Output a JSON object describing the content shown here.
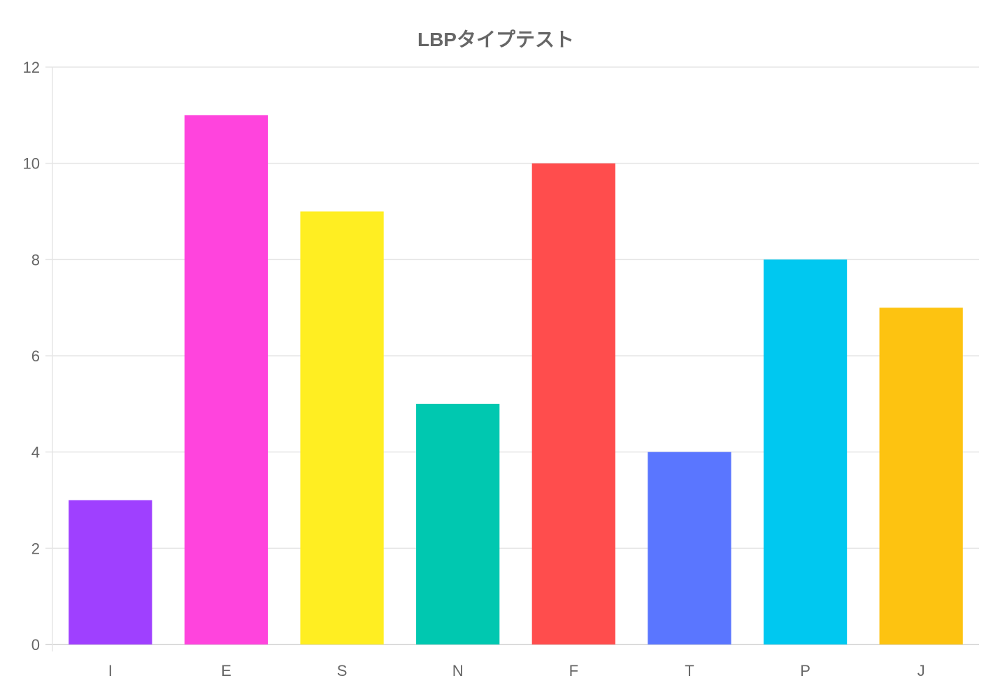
{
  "chart_data": {
    "type": "bar",
    "title": "LBPタイプテスト",
    "categories": [
      "I",
      "E",
      "S",
      "N",
      "F",
      "T",
      "P",
      "J"
    ],
    "values": [
      3,
      11,
      9,
      5,
      10,
      4,
      8,
      7
    ],
    "colors": [
      "#9f40ff",
      "#ff44dd",
      "#ffee22",
      "#00c8b0",
      "#ff4d4d",
      "#5a76ff",
      "#00c8f0",
      "#fdc311"
    ],
    "xlabel": "",
    "ylabel": "",
    "ylim": [
      0,
      12
    ],
    "yticks": [
      0,
      2,
      4,
      6,
      8,
      10,
      12
    ],
    "grid": true,
    "legend": "none"
  }
}
